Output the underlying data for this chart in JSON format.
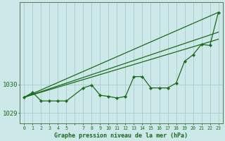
{
  "background_color": "#cce8e8",
  "grid_color": "#aacccc",
  "line_color": "#1a6b1a",
  "marker_color": "#1a6b1a",
  "xlabel": "Graphe pression niveau de la mer (hPa)",
  "ylim": [
    1028.62,
    1032.9
  ],
  "yticks": [
    1029,
    1030
  ],
  "xtick_labels": [
    "0",
    "1",
    "2",
    "3",
    "4",
    "5",
    "",
    "7",
    "8",
    "9",
    "10",
    "11",
    "12",
    "13",
    "14",
    "15",
    "16",
    "17",
    "18",
    "19",
    "20",
    "21",
    "22",
    "23"
  ],
  "xtick_positions": [
    0,
    1,
    2,
    3,
    4,
    5,
    6,
    7,
    8,
    9,
    10,
    11,
    12,
    13,
    14,
    15,
    16,
    17,
    18,
    19,
    20,
    21,
    22,
    23
  ],
  "xlim": [
    -0.5,
    23.5
  ],
  "main_series": {
    "x": [
      0,
      1,
      2,
      3,
      4,
      5,
      7,
      8,
      9,
      10,
      11,
      12,
      13,
      14,
      15,
      16,
      17,
      18,
      19,
      20,
      21,
      22,
      23
    ],
    "y": [
      1029.55,
      1029.72,
      1029.42,
      1029.42,
      1029.42,
      1029.42,
      1029.88,
      1029.98,
      1029.62,
      1029.58,
      1029.52,
      1029.58,
      1030.28,
      1030.28,
      1029.88,
      1029.88,
      1029.88,
      1030.05,
      1030.82,
      1031.05,
      1031.42,
      1031.38,
      1032.55
    ]
  },
  "trend_lines": [
    {
      "x": [
        0,
        23
      ],
      "y": [
        1029.55,
        1032.55
      ]
    },
    {
      "x": [
        0,
        23
      ],
      "y": [
        1029.55,
        1031.6
      ]
    },
    {
      "x": [
        0,
        23
      ],
      "y": [
        1029.55,
        1031.85
      ]
    }
  ]
}
